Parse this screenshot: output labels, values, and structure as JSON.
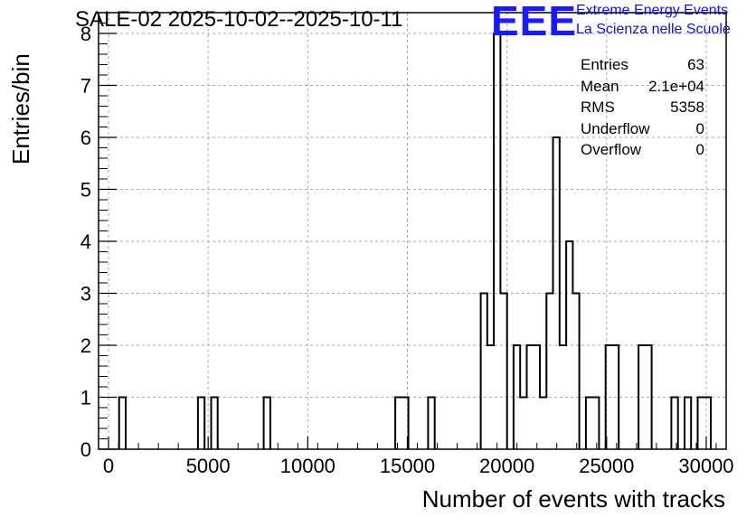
{
  "title": "SALE-02 2025-10-02--2025-10-11",
  "logo": {
    "mark": "EEE",
    "line1": "Extreme Energy Events",
    "line2": "La Scienza nelle Scuole"
  },
  "stats": [
    {
      "label": "Entries",
      "value": "63"
    },
    {
      "label": "Mean",
      "value": "2.1e+04"
    },
    {
      "label": "RMS",
      "value": "5358"
    },
    {
      "label": "Underflow",
      "value": "0"
    },
    {
      "label": "Overflow",
      "value": "0"
    }
  ],
  "colors": {
    "line": "#000000",
    "grid": "#aaaaaa",
    "logo": "#1a1aff"
  },
  "chart_data": {
    "type": "bar",
    "title": "SALE-02 2025-10-02--2025-10-11",
    "xlabel": "Number of events with tracks",
    "ylabel": "Entries/bin",
    "xlim": [
      -500,
      31000
    ],
    "ylim": [
      0,
      8.4
    ],
    "grid": true,
    "bin_width": 330,
    "x_ticks": [
      0,
      5000,
      10000,
      15000,
      20000,
      25000,
      30000
    ],
    "y_ticks": [
      0,
      1,
      2,
      3,
      4,
      5,
      6,
      7,
      8
    ],
    "bins": [
      {
        "x_low": 530,
        "count": 1
      },
      {
        "x_low": 4490,
        "count": 1
      },
      {
        "x_low": 5150,
        "count": 1
      },
      {
        "x_low": 7790,
        "count": 1
      },
      {
        "x_low": 14390,
        "count": 1
      },
      {
        "x_low": 14720,
        "count": 1
      },
      {
        "x_low": 16040,
        "count": 1
      },
      {
        "x_low": 18680,
        "count": 3
      },
      {
        "x_low": 19010,
        "count": 2
      },
      {
        "x_low": 19340,
        "count": 8
      },
      {
        "x_low": 19670,
        "count": 3
      },
      {
        "x_low": 20330,
        "count": 2
      },
      {
        "x_low": 20660,
        "count": 1
      },
      {
        "x_low": 20990,
        "count": 2
      },
      {
        "x_low": 21320,
        "count": 2
      },
      {
        "x_low": 21650,
        "count": 1
      },
      {
        "x_low": 21980,
        "count": 3
      },
      {
        "x_low": 22310,
        "count": 6
      },
      {
        "x_low": 22640,
        "count": 2
      },
      {
        "x_low": 22970,
        "count": 4
      },
      {
        "x_low": 23300,
        "count": 3
      },
      {
        "x_low": 23960,
        "count": 1
      },
      {
        "x_low": 24290,
        "count": 1
      },
      {
        "x_low": 24950,
        "count": 2
      },
      {
        "x_low": 25280,
        "count": 2
      },
      {
        "x_low": 26600,
        "count": 2
      },
      {
        "x_low": 26930,
        "count": 2
      },
      {
        "x_low": 28250,
        "count": 1
      },
      {
        "x_low": 28910,
        "count": 1
      },
      {
        "x_low": 29570,
        "count": 1
      },
      {
        "x_low": 29900,
        "count": 1
      }
    ]
  }
}
